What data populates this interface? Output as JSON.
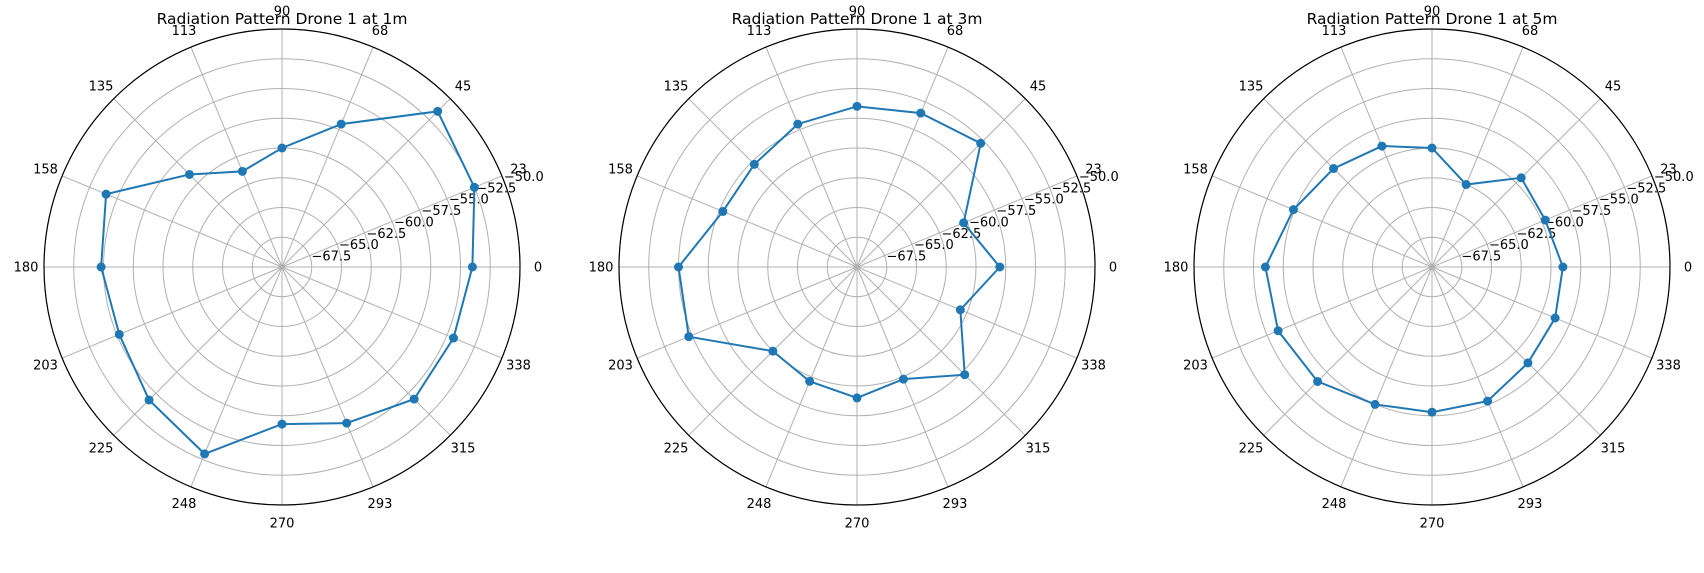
{
  "chart_data": [
    {
      "type": "polar-line",
      "title": "Radiation Pattern Drone 1 at 1m",
      "theta_tick_labels": [
        "0",
        "23",
        "45",
        "68",
        "90",
        "113",
        "135",
        "158",
        "180",
        "203",
        "225",
        "248",
        "270",
        "293",
        "315",
        "338"
      ],
      "r_tick_labels": [
        "-67.5",
        "-65.0",
        "-62.5",
        "-60.0",
        "-57.5",
        "-55.0",
        "-52.5",
        "-50.0"
      ],
      "rlim": [
        -70,
        -50
      ],
      "grid": true,
      "color": "#1f77b4",
      "theta_deg": [
        0,
        22.5,
        45,
        67.5,
        90,
        112.5,
        135,
        157.5,
        180,
        202.5,
        225,
        247.5,
        270,
        292.5,
        315,
        337.5
      ],
      "values": [
        -54.0,
        -52.5,
        -51.5,
        -57.0,
        -60.0,
        -61.3,
        -59.0,
        -54.0,
        -54.8,
        -55.2,
        -54.2,
        -53.0,
        -56.8,
        -55.8,
        -54.3,
        -54.4
      ]
    },
    {
      "type": "polar-line",
      "title": "Radiation Pattern Drone 1 at 3m",
      "theta_tick_labels": [
        "0",
        "23",
        "45",
        "68",
        "90",
        "113",
        "135",
        "158",
        "180",
        "203",
        "225",
        "248",
        "270",
        "293",
        "315",
        "338"
      ],
      "r_tick_labels": [
        "-67.5",
        "-65.0",
        "-62.5",
        "-60.0",
        "-57.5",
        "-55.0",
        "-52.5",
        "-50.0"
      ],
      "rlim": [
        -70,
        -50
      ],
      "grid": true,
      "color": "#1f77b4",
      "theta_deg": [
        0,
        22.5,
        45,
        67.5,
        90,
        112.5,
        135,
        157.5,
        180,
        202.5,
        225,
        247.5,
        270,
        292.5,
        315,
        337.5
      ],
      "values": [
        -58.0,
        -60.3,
        -55.3,
        -56.0,
        -56.5,
        -57.0,
        -57.8,
        -57.8,
        -55.0,
        -54.7,
        -60.0,
        -59.6,
        -59.0,
        -59.8,
        -57.2,
        -60.6
      ]
    },
    {
      "type": "polar-line",
      "title": "Radiation Pattern Drone 1 at 5m",
      "theta_tick_labels": [
        "0",
        "23",
        "45",
        "68",
        "90",
        "113",
        "135",
        "158",
        "180",
        "203",
        "225",
        "248",
        "270",
        "293",
        "315",
        "338"
      ],
      "r_tick_labels": [
        "-67.5",
        "-65.0",
        "-62.5",
        "-60.0",
        "-57.5",
        "-55.0",
        "-52.5",
        "-50.0"
      ],
      "rlim": [
        -70,
        -50
      ],
      "grid": true,
      "color": "#1f77b4",
      "theta_deg": [
        0,
        22.5,
        45,
        67.5,
        90,
        112.5,
        135,
        157.5,
        180,
        202.5,
        225,
        247.5,
        270,
        292.5,
        315,
        337.5
      ],
      "values": [
        -59.0,
        -59.7,
        -59.4,
        -62.5,
        -60.0,
        -59.0,
        -58.3,
        -57.4,
        -56.0,
        -56.0,
        -56.4,
        -57.5,
        -57.8,
        -57.8,
        -58.6,
        -58.8
      ]
    }
  ]
}
